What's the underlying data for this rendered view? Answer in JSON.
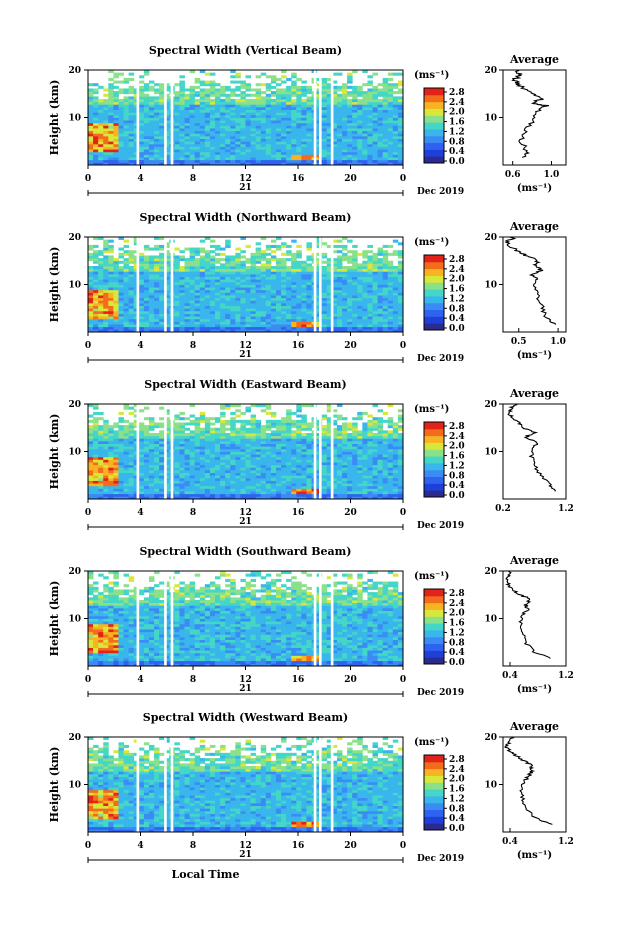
{
  "figure": {
    "footer_label": "Local Time",
    "date_label": "Dec 2019",
    "day_label": "21",
    "x_ticks": [
      "0",
      "4",
      "8",
      "12",
      "16",
      "20",
      "0"
    ],
    "y_ticks": [
      "20",
      "10"
    ],
    "ylabel": "Height (km)",
    "colorbar_unit": "(ms⁻¹)",
    "colorbar_ticks": [
      "2.8",
      "2.4",
      "2.0",
      "1.6",
      "1.2",
      "0.8",
      "0.4",
      "0.0"
    ],
    "colors": [
      "#2b2b8f",
      "#1f3fd9",
      "#2f62f0",
      "#3a8cf4",
      "#39b6ec",
      "#44d6c6",
      "#8be08a",
      "#d8e83a",
      "#f7b321",
      "#f36c1c",
      "#e2231a"
    ],
    "avg_title": "Average",
    "avg_xlabel": "(ms⁻¹)"
  },
  "chart_data": [
    {
      "type": "heatmap",
      "title": "Spectral Width (Vertical Beam)",
      "xlabel": "Local Time (hours, 21 Dec 2019)",
      "ylabel": "Height (km)",
      "xlim": [
        0,
        24
      ],
      "ylim": [
        0,
        20
      ],
      "clim": [
        0.0,
        2.8
      ],
      "gaps_hours": [
        [
          3.7,
          3.9
        ],
        [
          5.8,
          6.0
        ],
        [
          6.3,
          6.5
        ],
        [
          17.2,
          17.4
        ],
        [
          17.6,
          17.8
        ],
        [
          18.5,
          18.7
        ]
      ],
      "avg": {
        "title": "Average",
        "xlabel": "(ms⁻¹)",
        "xticks": [
          "0.6",
          "1.0"
        ],
        "xlim": [
          0.5,
          1.15
        ],
        "points": [
          [
            0.7,
            1.6
          ],
          [
            0.75,
            3
          ],
          [
            0.68,
            5
          ],
          [
            0.72,
            7
          ],
          [
            0.8,
            9
          ],
          [
            0.85,
            11
          ],
          [
            0.95,
            12.5
          ],
          [
            0.78,
            13
          ],
          [
            0.92,
            14
          ],
          [
            0.8,
            15
          ],
          [
            0.72,
            16
          ],
          [
            0.65,
            17
          ],
          [
            0.62,
            18
          ],
          [
            0.68,
            19
          ],
          [
            0.64,
            20
          ]
        ]
      }
    },
    {
      "type": "heatmap",
      "title": "Spectral Width (Northward Beam)",
      "xlabel": "Local Time (hours, 21 Dec 2019)",
      "ylabel": "Height (km)",
      "xlim": [
        0,
        24
      ],
      "ylim": [
        0,
        20
      ],
      "clim": [
        0.0,
        2.8
      ],
      "gaps_hours": [
        [
          3.7,
          3.9
        ],
        [
          5.8,
          6.0
        ],
        [
          6.3,
          6.5
        ],
        [
          17.2,
          17.4
        ],
        [
          17.6,
          17.8
        ],
        [
          18.5,
          18.7
        ]
      ],
      "avg": {
        "title": "Average",
        "xlabel": "(ms⁻¹)",
        "xticks": [
          "0.5",
          "1.0"
        ],
        "xlim": [
          0.3,
          1.1
        ],
        "points": [
          [
            0.95,
            1.6
          ],
          [
            0.85,
            3
          ],
          [
            0.8,
            5
          ],
          [
            0.75,
            7
          ],
          [
            0.7,
            9
          ],
          [
            0.72,
            11
          ],
          [
            0.68,
            12
          ],
          [
            0.78,
            13
          ],
          [
            0.7,
            14
          ],
          [
            0.75,
            15
          ],
          [
            0.6,
            16
          ],
          [
            0.5,
            17
          ],
          [
            0.4,
            18
          ],
          [
            0.35,
            19
          ],
          [
            0.45,
            20
          ]
        ]
      }
    },
    {
      "type": "heatmap",
      "title": "Spectral Width (Eastward Beam)",
      "xlabel": "Local Time (hours, 21 Dec 2019)",
      "ylabel": "Height (km)",
      "xlim": [
        0,
        24
      ],
      "ylim": [
        0,
        20
      ],
      "clim": [
        0.0,
        2.8
      ],
      "gaps_hours": [
        [
          3.7,
          3.9
        ],
        [
          5.8,
          6.0
        ],
        [
          6.3,
          6.5
        ],
        [
          17.2,
          17.4
        ],
        [
          17.6,
          17.8
        ],
        [
          18.5,
          18.7
        ]
      ],
      "avg": {
        "title": "Average",
        "xlabel": "",
        "xticks": [
          "0.2",
          "1.2"
        ],
        "xlim": [
          0.2,
          1.2
        ],
        "points": [
          [
            1.05,
            1.6
          ],
          [
            0.95,
            3
          ],
          [
            0.8,
            5
          ],
          [
            0.7,
            7
          ],
          [
            0.65,
            9
          ],
          [
            0.7,
            11
          ],
          [
            0.75,
            12
          ],
          [
            0.55,
            13
          ],
          [
            0.7,
            14
          ],
          [
            0.5,
            15
          ],
          [
            0.45,
            16
          ],
          [
            0.35,
            17
          ],
          [
            0.3,
            18
          ],
          [
            0.32,
            19
          ],
          [
            0.4,
            20
          ]
        ]
      }
    },
    {
      "type": "heatmap",
      "title": "Spectral Width (Southward Beam)",
      "xlabel": "Local Time (hours, 21 Dec 2019)",
      "ylabel": "Height (km)",
      "xlim": [
        0,
        24
      ],
      "ylim": [
        0,
        20
      ],
      "clim": [
        0.0,
        2.8
      ],
      "gaps_hours": [
        [
          3.7,
          3.9
        ],
        [
          5.8,
          6.0
        ],
        [
          6.3,
          6.5
        ],
        [
          17.2,
          17.4
        ],
        [
          17.6,
          17.8
        ],
        [
          18.5,
          18.7
        ]
      ],
      "avg": {
        "title": "Average",
        "xlabel": "(ms⁻¹)",
        "xticks": [
          "0.4",
          "1.2"
        ],
        "xlim": [
          0.3,
          1.2
        ],
        "points": [
          [
            1.0,
            1.6
          ],
          [
            0.75,
            3
          ],
          [
            0.62,
            5
          ],
          [
            0.58,
            7
          ],
          [
            0.55,
            9
          ],
          [
            0.6,
            11
          ],
          [
            0.65,
            12
          ],
          [
            0.62,
            13
          ],
          [
            0.7,
            14
          ],
          [
            0.55,
            15
          ],
          [
            0.45,
            16
          ],
          [
            0.38,
            17
          ],
          [
            0.35,
            18
          ],
          [
            0.4,
            19
          ],
          [
            0.38,
            20
          ]
        ]
      }
    },
    {
      "type": "heatmap",
      "title": "Spectral Width (Westward Beam)",
      "xlabel": "Local Time (hours, 21 Dec 2019)",
      "ylabel": "Height (km)",
      "xlim": [
        0,
        24
      ],
      "ylim": [
        0,
        20
      ],
      "clim": [
        0.0,
        2.8
      ],
      "gaps_hours": [
        [
          3.7,
          3.9
        ],
        [
          5.8,
          6.0
        ],
        [
          6.3,
          6.5
        ],
        [
          17.2,
          17.4
        ],
        [
          17.6,
          17.8
        ],
        [
          18.5,
          18.7
        ]
      ],
      "avg": {
        "title": "Average",
        "xlabel": "(ms⁻¹)",
        "xticks": [
          "0.4",
          "1.2"
        ],
        "xlim": [
          0.3,
          1.2
        ],
        "points": [
          [
            1.0,
            1.6
          ],
          [
            0.75,
            3
          ],
          [
            0.62,
            5
          ],
          [
            0.58,
            7
          ],
          [
            0.55,
            9
          ],
          [
            0.62,
            11
          ],
          [
            0.68,
            12
          ],
          [
            0.72,
            13
          ],
          [
            0.7,
            14
          ],
          [
            0.6,
            15
          ],
          [
            0.5,
            16
          ],
          [
            0.4,
            17
          ],
          [
            0.35,
            18
          ],
          [
            0.38,
            19
          ],
          [
            0.42,
            20
          ]
        ]
      }
    }
  ]
}
